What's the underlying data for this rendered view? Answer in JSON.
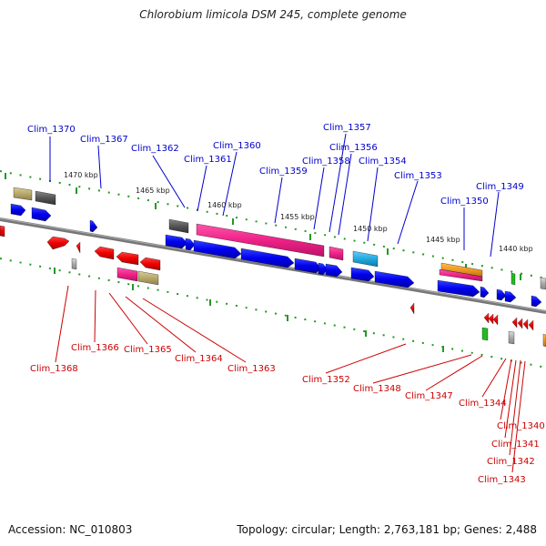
{
  "title": "Chlorobium limicola DSM 245, complete genome",
  "footer": {
    "accession": "Accession: NC_010803",
    "topology": "Topology: circular; Length: 2,763,181 bp; Genes: 2,488"
  },
  "colors": {
    "backbone": "#808080",
    "forward_label": "#0000cc",
    "reverse_label": "#cc0000",
    "tick": "#229922",
    "blue": "#0000ee",
    "red": "#ee0000",
    "pink": "#ee2288",
    "grey": "#555555",
    "olive": "#b8a868",
    "cyan": "#22aadd",
    "orange": "#ee9922"
  },
  "kbp_labels": [
    "1470 kbp",
    "1465 kbp",
    "1460 kbp",
    "1455 kbp",
    "1450 kbp",
    "1445 kbp",
    "1440 kbp"
  ],
  "forward_genes": [
    "Clim_1370",
    "Clim_1367",
    "Clim_1362",
    "Clim_1361",
    "Clim_1360",
    "Clim_1359",
    "Clim_1358",
    "Clim_1357",
    "Clim_1356",
    "Clim_1354",
    "Clim_1353",
    "Clim_1350",
    "Clim_1349"
  ],
  "reverse_genes": [
    "Clim_1368",
    "Clim_1366",
    "Clim_1365",
    "Clim_1364",
    "Clim_1363",
    "Clim_1352",
    "Clim_1348",
    "Clim_1347",
    "Clim_1344",
    "Clim_1340",
    "Clim_1341",
    "Clim_1342",
    "Clim_1343"
  ]
}
